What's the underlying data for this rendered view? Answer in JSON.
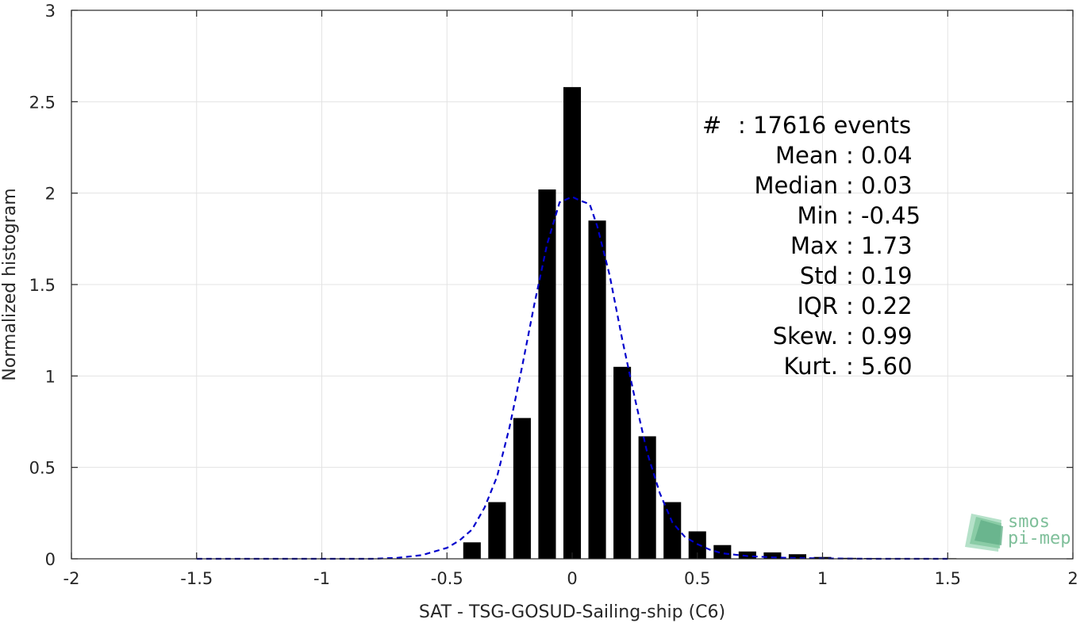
{
  "chart_data": {
    "type": "bar",
    "xlabel": "SAT - TSG-GOSUD-Sailing-ship (C6)",
    "ylabel": "Normalized histogram",
    "xlim": [
      -2,
      2
    ],
    "ylim": [
      0,
      3
    ],
    "xticks": [
      "-2",
      "-1.5",
      "-1",
      "-0.5",
      "0",
      "0.5",
      "1",
      "1.5",
      "2"
    ],
    "yticks": [
      "0",
      "0.5",
      "1",
      "1.5",
      "2",
      "2.5",
      "3"
    ],
    "grid": true,
    "bar_color": "#000000",
    "bar_width": 0.07,
    "bars": [
      {
        "x": -0.4,
        "y": 0.09
      },
      {
        "x": -0.3,
        "y": 0.31
      },
      {
        "x": -0.2,
        "y": 0.77
      },
      {
        "x": -0.1,
        "y": 2.02
      },
      {
        "x": 0.0,
        "y": 2.58
      },
      {
        "x": 0.1,
        "y": 1.85
      },
      {
        "x": 0.2,
        "y": 1.05
      },
      {
        "x": 0.3,
        "y": 0.67
      },
      {
        "x": 0.4,
        "y": 0.31
      },
      {
        "x": 0.5,
        "y": 0.15
      },
      {
        "x": 0.6,
        "y": 0.075
      },
      {
        "x": 0.7,
        "y": 0.04
      },
      {
        "x": 0.8,
        "y": 0.035
      },
      {
        "x": 0.9,
        "y": 0.025
      },
      {
        "x": 1.0,
        "y": 0.01
      },
      {
        "x": 1.1,
        "y": 0.005
      },
      {
        "x": 1.2,
        "y": 0.004
      },
      {
        "x": 1.3,
        "y": 0.003
      },
      {
        "x": 1.4,
        "y": 0.003
      },
      {
        "x": 1.5,
        "y": 0.003
      }
    ],
    "fit_curve": {
      "color": "#0000cc",
      "style": "dashed",
      "x": [
        -1.5,
        -1.0,
        -0.8,
        -0.7,
        -0.6,
        -0.5,
        -0.45,
        -0.4,
        -0.35,
        -0.3,
        -0.25,
        -0.2,
        -0.15,
        -0.1,
        -0.05,
        0.0,
        0.03,
        0.07,
        0.1,
        0.15,
        0.2,
        0.25,
        0.3,
        0.35,
        0.4,
        0.45,
        0.5,
        0.55,
        0.6,
        0.7,
        0.8,
        0.9,
        1.0,
        1.2,
        1.5
      ],
      "y": [
        0.0,
        0.0,
        0.0,
        0.005,
        0.02,
        0.06,
        0.1,
        0.16,
        0.28,
        0.45,
        0.72,
        1.05,
        1.4,
        1.72,
        1.95,
        1.98,
        1.96,
        1.94,
        1.82,
        1.55,
        1.2,
        0.88,
        0.58,
        0.36,
        0.2,
        0.12,
        0.08,
        0.05,
        0.03,
        0.015,
        0.008,
        0.004,
        0.002,
        0.0,
        0.0
      ]
    },
    "stats": [
      {
        "label": "#",
        "value": ": 17616 events"
      },
      {
        "label": "Mean",
        "value": ": 0.04"
      },
      {
        "label": "Median",
        "value": ": 0.03"
      },
      {
        "label": "Min",
        "value": ": -0.45"
      },
      {
        "label": "Max",
        "value": ": 1.73"
      },
      {
        "label": "Std",
        "value": ": 0.19"
      },
      {
        "label": "IQR",
        "value": ": 0.22"
      },
      {
        "label": "Skew.",
        "value": ": 0.99"
      },
      {
        "label": "Kurt.",
        "value": ": 5.60"
      }
    ]
  },
  "logo": {
    "line1": "smos",
    "line2": "pi-mep",
    "color": "#7fbf9a"
  }
}
